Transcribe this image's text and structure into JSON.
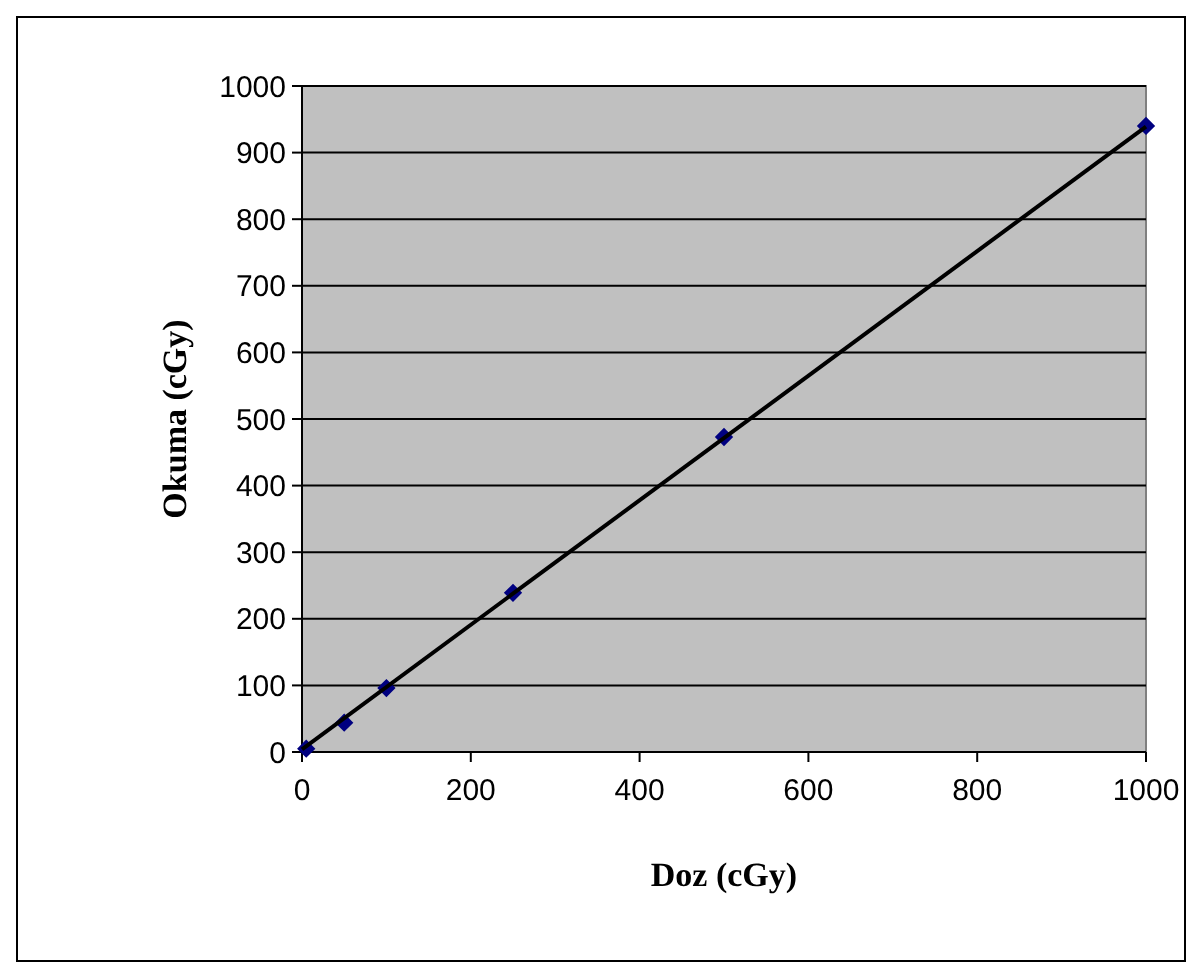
{
  "chart_data": {
    "type": "scatter",
    "xlabel": "Doz (cGy)",
    "ylabel": "Okuma (cGy)",
    "x": [
      5,
      50,
      100,
      250,
      500,
      1000
    ],
    "series": [
      {
        "color": "#000080",
        "marker": "diamond",
        "values": [
          5,
          44,
          96,
          239,
          473,
          940
        ]
      },
      {
        "type": "line",
        "color": "#000000",
        "marker": "none",
        "line_style": "solid",
        "x": [
          0,
          1000
        ],
        "values": [
          4,
          939
        ]
      }
    ],
    "xlim": [
      0,
      1000
    ],
    "xticks": [
      0,
      200,
      400,
      600,
      800,
      1000
    ],
    "ylim": [
      0,
      1000
    ],
    "yticks": [
      0,
      100,
      200,
      300,
      400,
      500,
      600,
      700,
      800,
      900,
      1000
    ],
    "grid": "y"
  }
}
